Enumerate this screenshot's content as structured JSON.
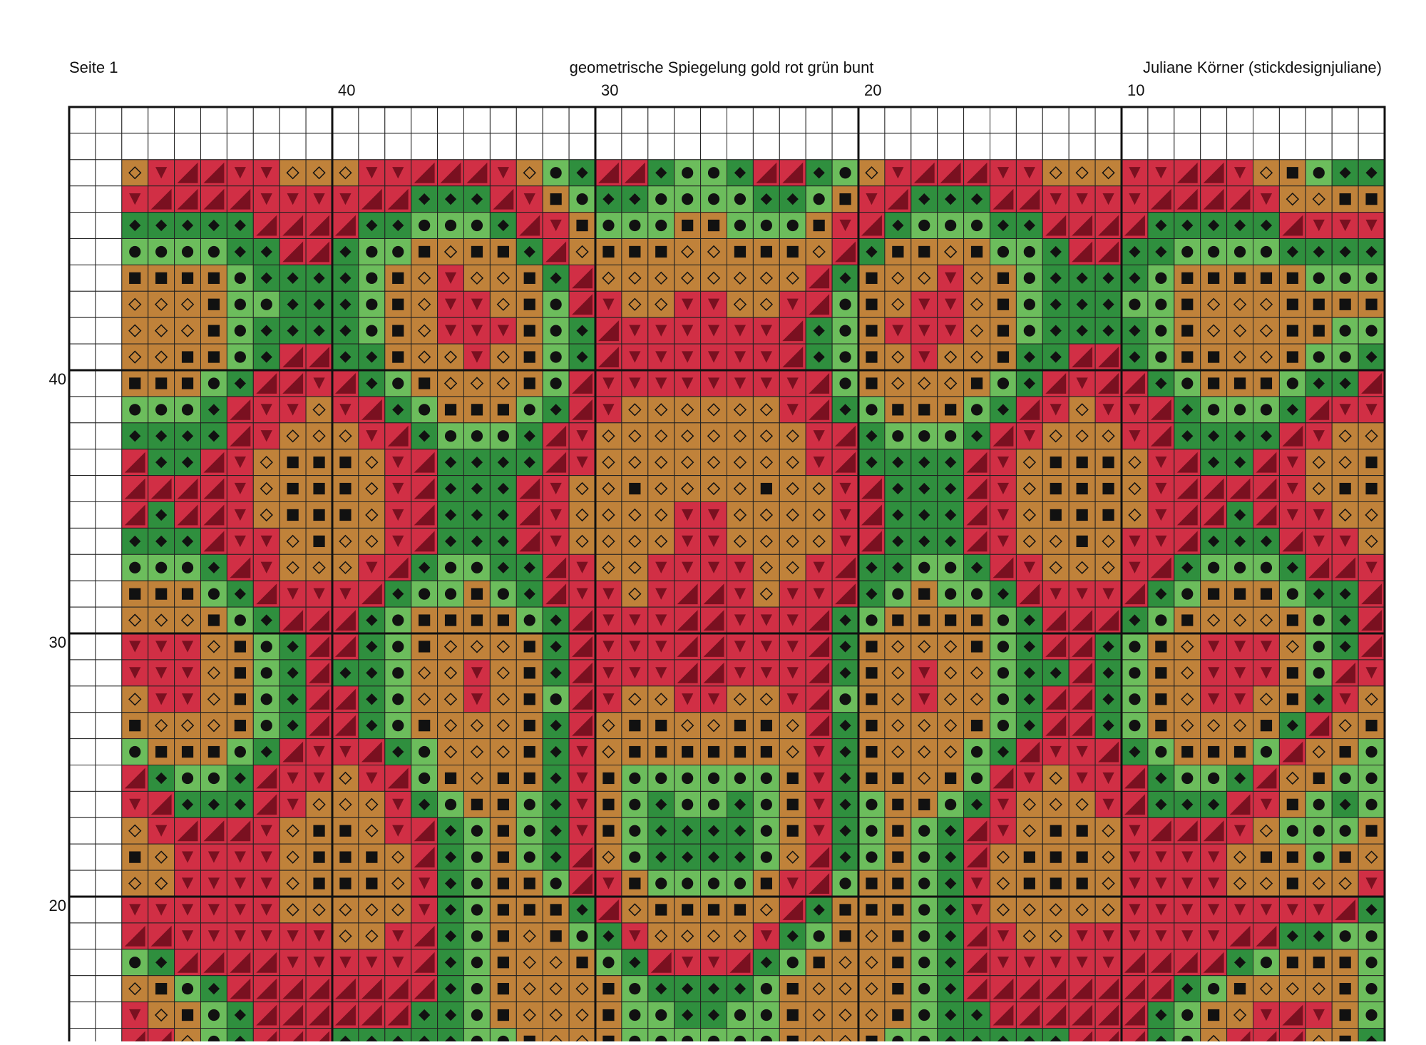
{
  "header": {
    "page": "Seite 1",
    "title": "geometrische Spiegelung gold rot grün bunt",
    "author": "Juliane Körner (stickdesignjuliane)"
  },
  "column_labels": [
    40,
    30,
    20,
    10
  ],
  "row_labels": [
    40,
    30,
    20
  ]
}
